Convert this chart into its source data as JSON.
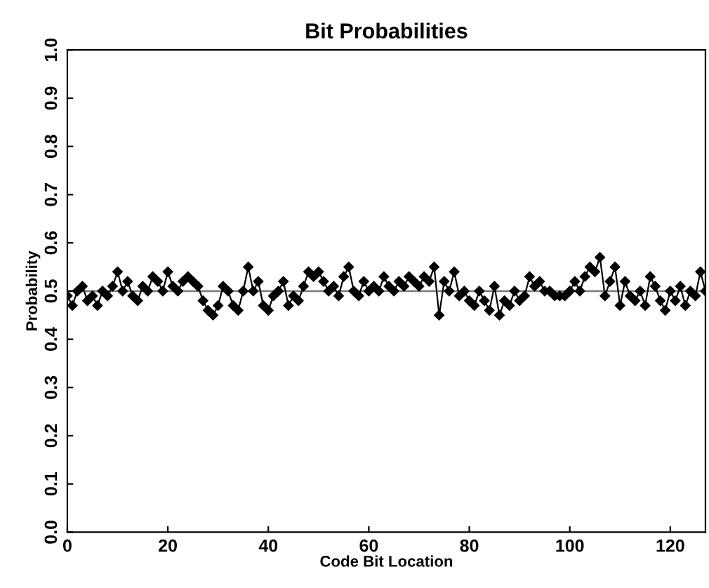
{
  "chart_data": {
    "type": "line",
    "title": "Bit Probabilities",
    "xlabel": "Code Bit Location",
    "ylabel": "Probability",
    "x": [
      0,
      1,
      2,
      3,
      4,
      5,
      6,
      7,
      8,
      9,
      10,
      11,
      12,
      13,
      14,
      15,
      16,
      17,
      18,
      19,
      20,
      21,
      22,
      23,
      24,
      25,
      26,
      27,
      28,
      29,
      30,
      31,
      32,
      33,
      34,
      35,
      36,
      37,
      38,
      39,
      40,
      41,
      42,
      43,
      44,
      45,
      46,
      47,
      48,
      49,
      50,
      51,
      52,
      53,
      54,
      55,
      56,
      57,
      58,
      59,
      60,
      61,
      62,
      63,
      64,
      65,
      66,
      67,
      68,
      69,
      70,
      71,
      72,
      73,
      74,
      75,
      76,
      77,
      78,
      79,
      80,
      81,
      82,
      83,
      84,
      85,
      86,
      87,
      88,
      89,
      90,
      91,
      92,
      93,
      94,
      95,
      96,
      97,
      98,
      99,
      100,
      101,
      102,
      103,
      104,
      105,
      106,
      107,
      108,
      109,
      110,
      111,
      112,
      113,
      114,
      115,
      116,
      117,
      118,
      119,
      120,
      121,
      122,
      123,
      124,
      125,
      126,
      127
    ],
    "series": [
      {
        "color": "#000000",
        "values": [
          0.49,
          0.47,
          0.5,
          0.51,
          0.48,
          0.49,
          0.47,
          0.5,
          0.49,
          0.51,
          0.54,
          0.5,
          0.52,
          0.49,
          0.48,
          0.51,
          0.5,
          0.53,
          0.52,
          0.5,
          0.54,
          0.51,
          0.5,
          0.52,
          0.53,
          0.52,
          0.51,
          0.48,
          0.46,
          0.45,
          0.47,
          0.51,
          0.5,
          0.47,
          0.46,
          0.5,
          0.55,
          0.5,
          0.52,
          0.47,
          0.46,
          0.49,
          0.5,
          0.52,
          0.47,
          0.49,
          0.48,
          0.51,
          0.54,
          0.53,
          0.54,
          0.52,
          0.5,
          0.51,
          0.49,
          0.53,
          0.55,
          0.5,
          0.49,
          0.52,
          0.5,
          0.51,
          0.5,
          0.53,
          0.51,
          0.5,
          0.52,
          0.51,
          0.53,
          0.52,
          0.51,
          0.53,
          0.52,
          0.55,
          0.45,
          0.52,
          0.5,
          0.54,
          0.49,
          0.5,
          0.48,
          0.47,
          0.5,
          0.48,
          0.46,
          0.51,
          0.45,
          0.48,
          0.47,
          0.5,
          0.48,
          0.49,
          0.53,
          0.51,
          0.52,
          0.5,
          0.5,
          0.49,
          0.49,
          0.49,
          0.5,
          0.52,
          0.5,
          0.53,
          0.55,
          0.54,
          0.57,
          0.49,
          0.52,
          0.55,
          0.47,
          0.52,
          0.49,
          0.48,
          0.5,
          0.47,
          0.53,
          0.51,
          0.48,
          0.46,
          0.5,
          0.48,
          0.51,
          0.47,
          0.5,
          0.49,
          0.54,
          0.5
        ]
      }
    ],
    "xlim": [
      0,
      127
    ],
    "ylim": [
      0,
      1
    ],
    "xticks": [
      0,
      20,
      40,
      60,
      80,
      100,
      120
    ],
    "yticks": [
      {
        "value": 0,
        "label": "0.0"
      },
      0.1,
      0.2,
      0.3,
      0.4,
      0.5,
      0.6,
      0.7,
      0.8,
      0.9,
      {
        "value": 1,
        "label": "1.0"
      }
    ],
    "ref_lines": [
      {
        "axis": "y",
        "value": 0.5,
        "color": "#808080"
      }
    ],
    "marker": "diamond",
    "line_style": "solid",
    "grid": false,
    "legend": false
  }
}
